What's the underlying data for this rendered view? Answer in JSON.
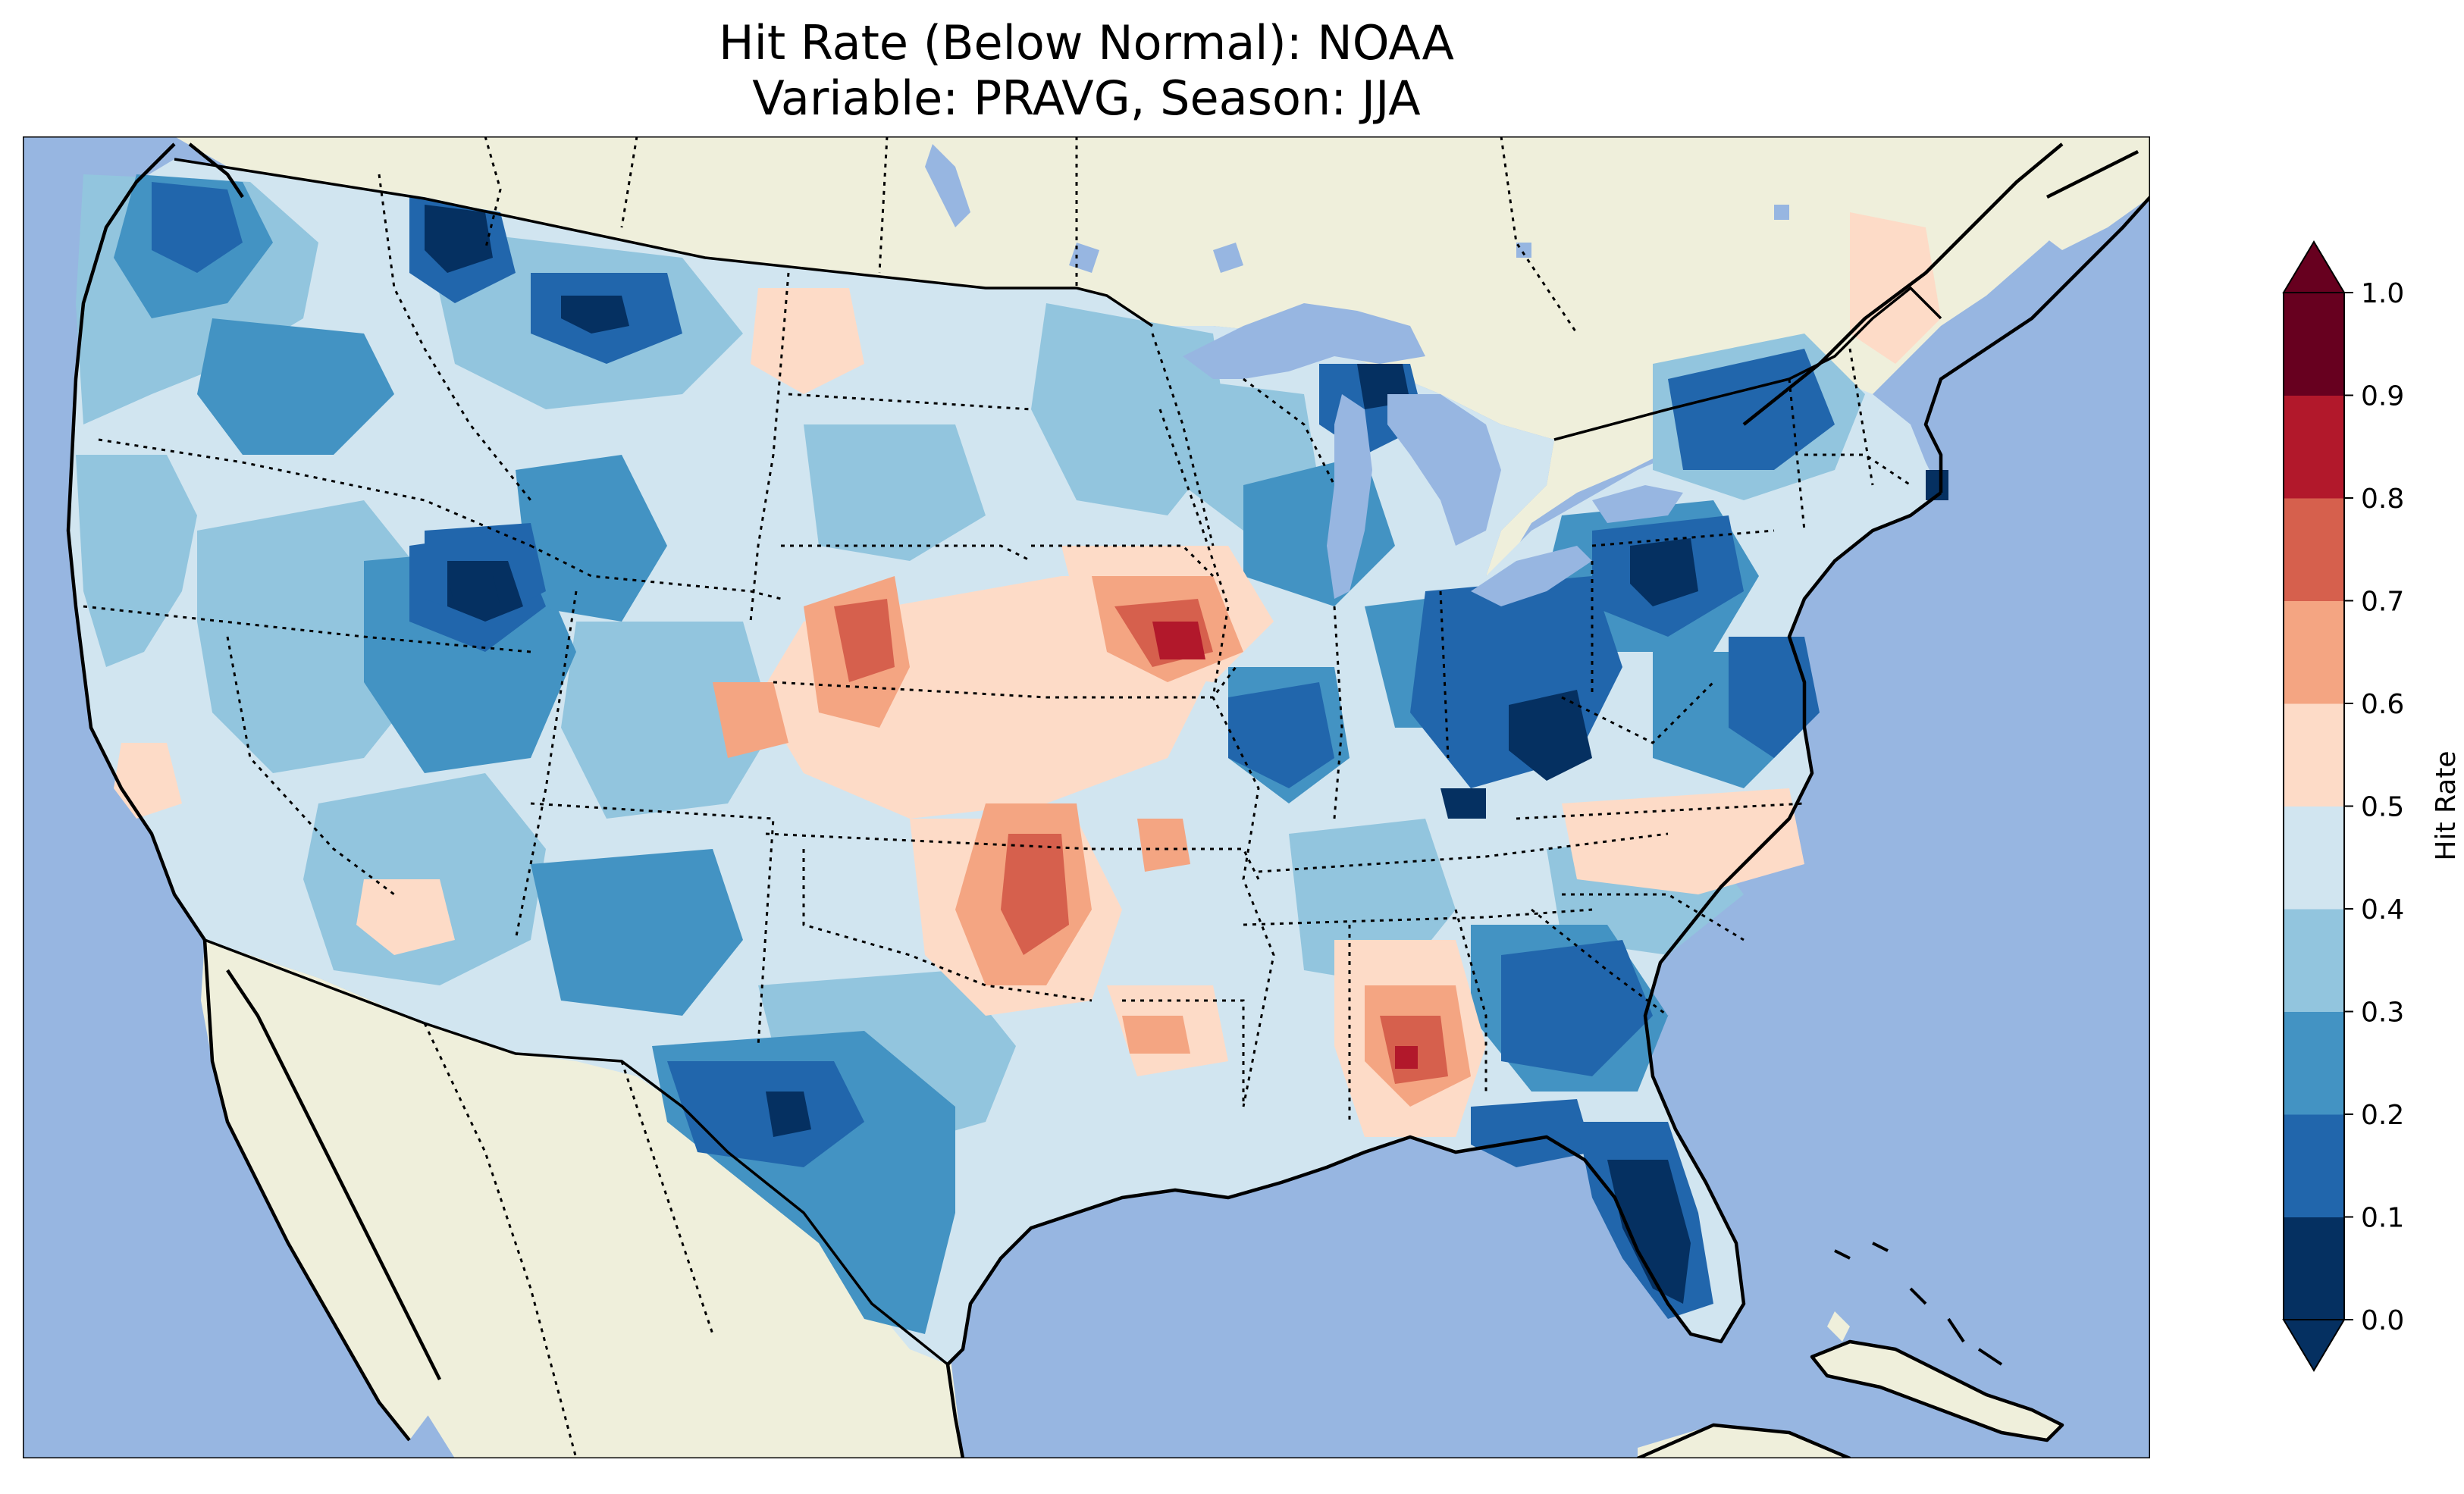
{
  "figure": {
    "title_line1": "Hit Rate (Below Normal): NOAA",
    "title_line2": "Variable: PRAVG, Season: JJA"
  },
  "colors": {
    "ocean": "#97b6e1",
    "land": "#efefdb",
    "lakes": "#97b6e1"
  },
  "colorbar": {
    "label": "Hit Rate",
    "ticks": [
      "0.0",
      "0.1",
      "0.2",
      "0.3",
      "0.4",
      "0.5",
      "0.6",
      "0.7",
      "0.8",
      "0.9",
      "1.0"
    ],
    "bins": [
      {
        "range": "0.0-0.1",
        "color": "#053061"
      },
      {
        "range": "0.1-0.2",
        "color": "#2166ac"
      },
      {
        "range": "0.2-0.3",
        "color": "#4393c3"
      },
      {
        "range": "0.3-0.4",
        "color": "#92c5de"
      },
      {
        "range": "0.4-0.5",
        "color": "#d1e5f0"
      },
      {
        "range": "0.5-0.6",
        "color": "#fddbc7"
      },
      {
        "range": "0.6-0.7",
        "color": "#f4a582"
      },
      {
        "range": "0.7-0.8",
        "color": "#d6604d"
      },
      {
        "range": "0.8-0.9",
        "color": "#b2182b"
      },
      {
        "range": "0.9-1.0",
        "color": "#67001f"
      }
    ],
    "extend_under_color": "#053061",
    "extend_over_color": "#67001f"
  },
  "map_regions": [
    {
      "name": "pacific-northwest",
      "hit_rate_bin": "0.1-0.2"
    },
    {
      "name": "northern-rockies",
      "hit_rate_bin": "0.0-0.1"
    },
    {
      "name": "great-basin",
      "hit_rate_bin": "0.2-0.3"
    },
    {
      "name": "central-plains",
      "hit_rate_bin": "0.6-0.7"
    },
    {
      "name": "iowa-missouri",
      "hit_rate_bin": "0.8-0.9"
    },
    {
      "name": "oklahoma",
      "hit_rate_bin": "0.6-0.7"
    },
    {
      "name": "ohio-valley",
      "hit_rate_bin": "0.0-0.1"
    },
    {
      "name": "mississippi-alabama",
      "hit_rate_bin": "0.8-0.9"
    },
    {
      "name": "florida",
      "hit_rate_bin": "0.0-0.1"
    },
    {
      "name": "south-texas",
      "hit_rate_bin": "0.1-0.2"
    },
    {
      "name": "northeast",
      "hit_rate_bin": "0.1-0.2"
    },
    {
      "name": "southeast-coast",
      "hit_rate_bin": "0.1-0.2"
    }
  ]
}
